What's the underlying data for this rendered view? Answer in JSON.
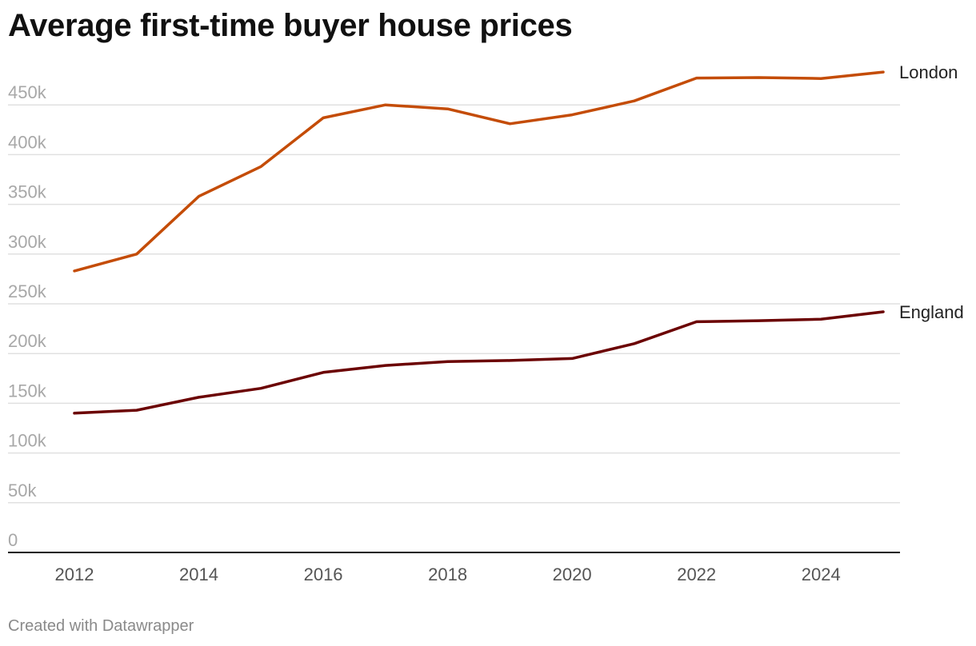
{
  "title": "Average first-time buyer house prices",
  "footer": "Created with Datawrapper",
  "colors": {
    "london": "#c44c07",
    "england": "#6b0000",
    "grid": "#e0e0e0",
    "axis": "#111111"
  },
  "chart_data": {
    "type": "line",
    "title": "Average first-time buyer house prices",
    "xlabel": "",
    "ylabel": "",
    "x": [
      2012,
      2013,
      2014,
      2015,
      2016,
      2017,
      2018,
      2019,
      2020,
      2021,
      2022,
      2023,
      2024,
      2025
    ],
    "xticks": [
      "2012",
      "2014",
      "2016",
      "2018",
      "2020",
      "2022",
      "2024"
    ],
    "ylim": [
      0,
      475000
    ],
    "yticks": [
      "0",
      "50k",
      "100k",
      "150k",
      "200k",
      "250k",
      "300k",
      "350k",
      "400k",
      "450k"
    ],
    "yticks_values": [
      0,
      50000,
      100000,
      150000,
      200000,
      250000,
      300000,
      350000,
      400000,
      450000
    ],
    "grid": true,
    "legend": "direct labels at line ends",
    "series": [
      {
        "name": "London",
        "color": "#c44c07",
        "values": [
          283000,
          300000,
          358000,
          388000,
          437000,
          450000,
          446000,
          431000,
          440000,
          454000,
          477000,
          477500,
          476500,
          483000
        ]
      },
      {
        "name": "England",
        "color": "#6b0000",
        "values": [
          140000,
          143000,
          156000,
          165000,
          181000,
          188000,
          192000,
          193000,
          195000,
          210000,
          232000,
          233000,
          234500,
          242000
        ]
      }
    ]
  }
}
